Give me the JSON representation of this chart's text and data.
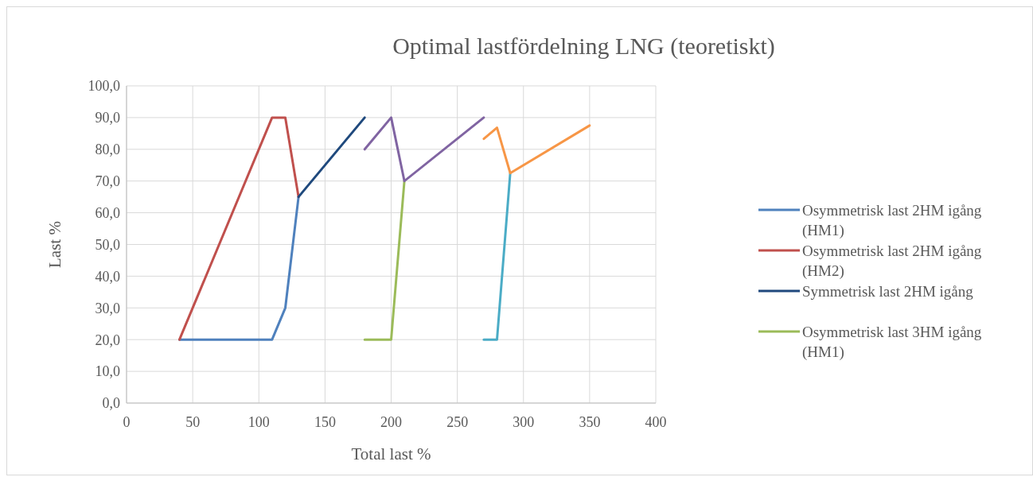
{
  "chart_data": {
    "type": "line",
    "title": "Optimal lastfördelning LNG (teoretiskt)",
    "xlabel": "Total last %",
    "ylabel": "Last %",
    "xlim": [
      0,
      400
    ],
    "xticks": [
      0,
      50,
      100,
      150,
      200,
      250,
      300,
      350,
      400
    ],
    "ylim": [
      0,
      100
    ],
    "yticks": [
      {
        "value": 0,
        "label": "0,0"
      },
      {
        "value": 10,
        "label": "10,0"
      },
      {
        "value": 20,
        "label": "20,0"
      },
      {
        "value": 30,
        "label": "30,0"
      },
      {
        "value": 40,
        "label": "40,0"
      },
      {
        "value": 50,
        "label": "50,0"
      },
      {
        "value": 60,
        "label": "60,0"
      },
      {
        "value": 70,
        "label": "70,0"
      },
      {
        "value": 80,
        "label": "80,0"
      },
      {
        "value": 90,
        "label": "90,0"
      },
      {
        "value": 100,
        "label": "100,0"
      }
    ],
    "grid": true,
    "legend": "right",
    "marker": "none",
    "line_style": "solid",
    "series": [
      {
        "name": "Osymmetrisk last 2HM igång (HM1)",
        "color": "#4f81bd",
        "x": [
          40,
          110,
          120,
          130
        ],
        "values": [
          20,
          20,
          30,
          65
        ]
      },
      {
        "name": "Osymmetrisk last 2HM igång (HM2)",
        "color": "#c0504d",
        "x": [
          40,
          110,
          120,
          130
        ],
        "values": [
          20,
          90,
          90,
          65
        ]
      },
      {
        "name": "Symmetrisk last 2HM igång",
        "color": "#1f497d",
        "x": [
          130,
          180
        ],
        "values": [
          65,
          90
        ]
      },
      {
        "name": "Osymmetrisk last 3HM igång (HM1)",
        "color": "#9bbb59",
        "x": [
          180,
          200,
          210
        ],
        "values": [
          20,
          20,
          70
        ]
      },
      {
        "color": "#8064a2",
        "x": [
          180,
          200,
          210,
          270
        ],
        "values": [
          80,
          90,
          70,
          90
        ]
      },
      {
        "color": "#4bacc6",
        "x": [
          270,
          280,
          290
        ],
        "values": [
          20,
          20,
          72.5
        ]
      },
      {
        "color": "#f79646",
        "x": [
          270,
          280,
          290,
          350
        ],
        "values": [
          83.3,
          86.8,
          72.5,
          87.5
        ]
      }
    ]
  }
}
